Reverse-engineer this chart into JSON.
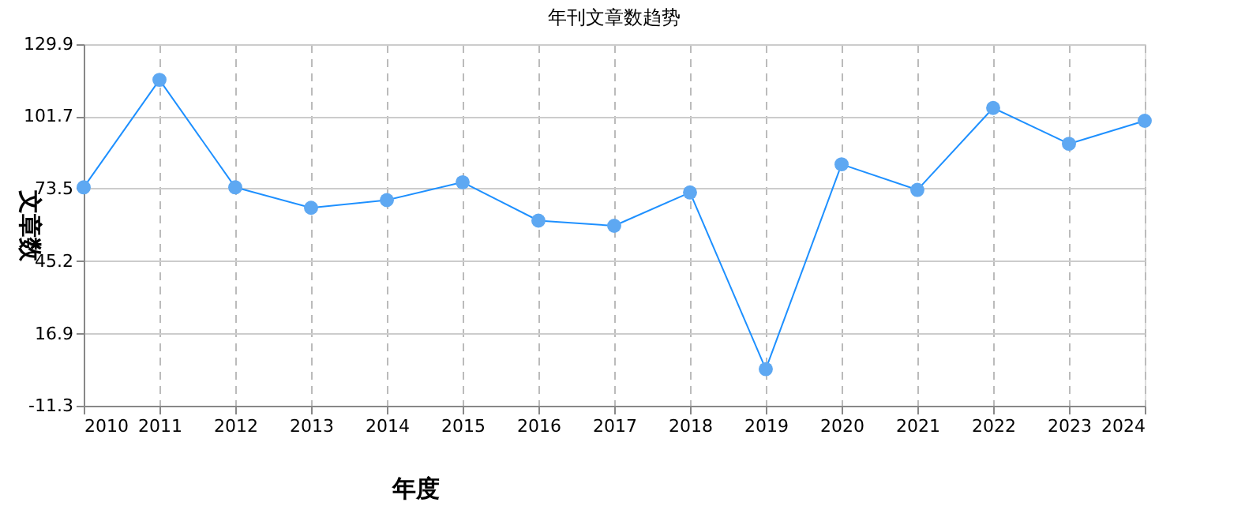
{
  "chart_data": {
    "type": "line",
    "title": "年刊文章数趋势",
    "xlabel": "年度",
    "ylabel": "文章数",
    "categories": [
      "2010",
      "2011",
      "2012",
      "2013",
      "2014",
      "2015",
      "2016",
      "2017",
      "2018",
      "2019",
      "2020",
      "2021",
      "2022",
      "2023",
      "2024"
    ],
    "series": [
      {
        "color": "#1e90ff",
        "values": [
          74,
          116,
          74,
          66,
          69,
          76,
          61,
          59,
          72,
          3,
          83,
          73,
          105,
          91,
          100
        ]
      }
    ],
    "ylim": [
      -11.3,
      129.9
    ],
    "yticks": [
      -11.3,
      16.9,
      45.2,
      73.5,
      101.7,
      129.9
    ],
    "grid": true,
    "marker": "circle",
    "line_style": "solid"
  }
}
